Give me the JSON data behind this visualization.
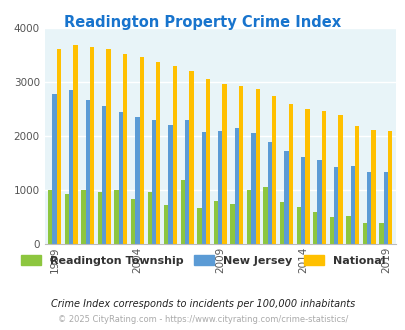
{
  "title": "Readington Property Crime Index",
  "title_color": "#1874CD",
  "years": [
    1999,
    2000,
    2001,
    2002,
    2003,
    2004,
    2005,
    2006,
    2007,
    2008,
    2009,
    2010,
    2011,
    2012,
    2013,
    2014,
    2015,
    2016,
    2017,
    2018,
    2019
  ],
  "readington": [
    1000,
    930,
    1000,
    970,
    1010,
    840,
    970,
    730,
    1190,
    670,
    800,
    750,
    1000,
    1050,
    780,
    690,
    600,
    500,
    530,
    400,
    390
  ],
  "nj": [
    2780,
    2850,
    2660,
    2550,
    2450,
    2350,
    2300,
    2210,
    2290,
    2080,
    2090,
    2150,
    2060,
    1900,
    1720,
    1620,
    1560,
    1430,
    1440,
    1340,
    1330
  ],
  "national": [
    3620,
    3680,
    3650,
    3610,
    3520,
    3460,
    3370,
    3290,
    3210,
    3050,
    2960,
    2930,
    2880,
    2740,
    2600,
    2500,
    2470,
    2390,
    2180,
    2110,
    2090
  ],
  "readington_color": "#8DC63F",
  "nj_color": "#5B9BD5",
  "national_color": "#FFC000",
  "bg_color": "#E8F4F8",
  "ylim": [
    0,
    4000
  ],
  "yticks": [
    0,
    1000,
    2000,
    3000,
    4000
  ],
  "xlabel_ticks": [
    1999,
    2004,
    2009,
    2014,
    2019
  ],
  "subtitle": "Crime Index corresponds to incidents per 100,000 inhabitants",
  "footer": "© 2025 CityRating.com - https://www.cityrating.com/crime-statistics/",
  "legend_labels": [
    "Readington Township",
    "New Jersey",
    "National"
  ]
}
